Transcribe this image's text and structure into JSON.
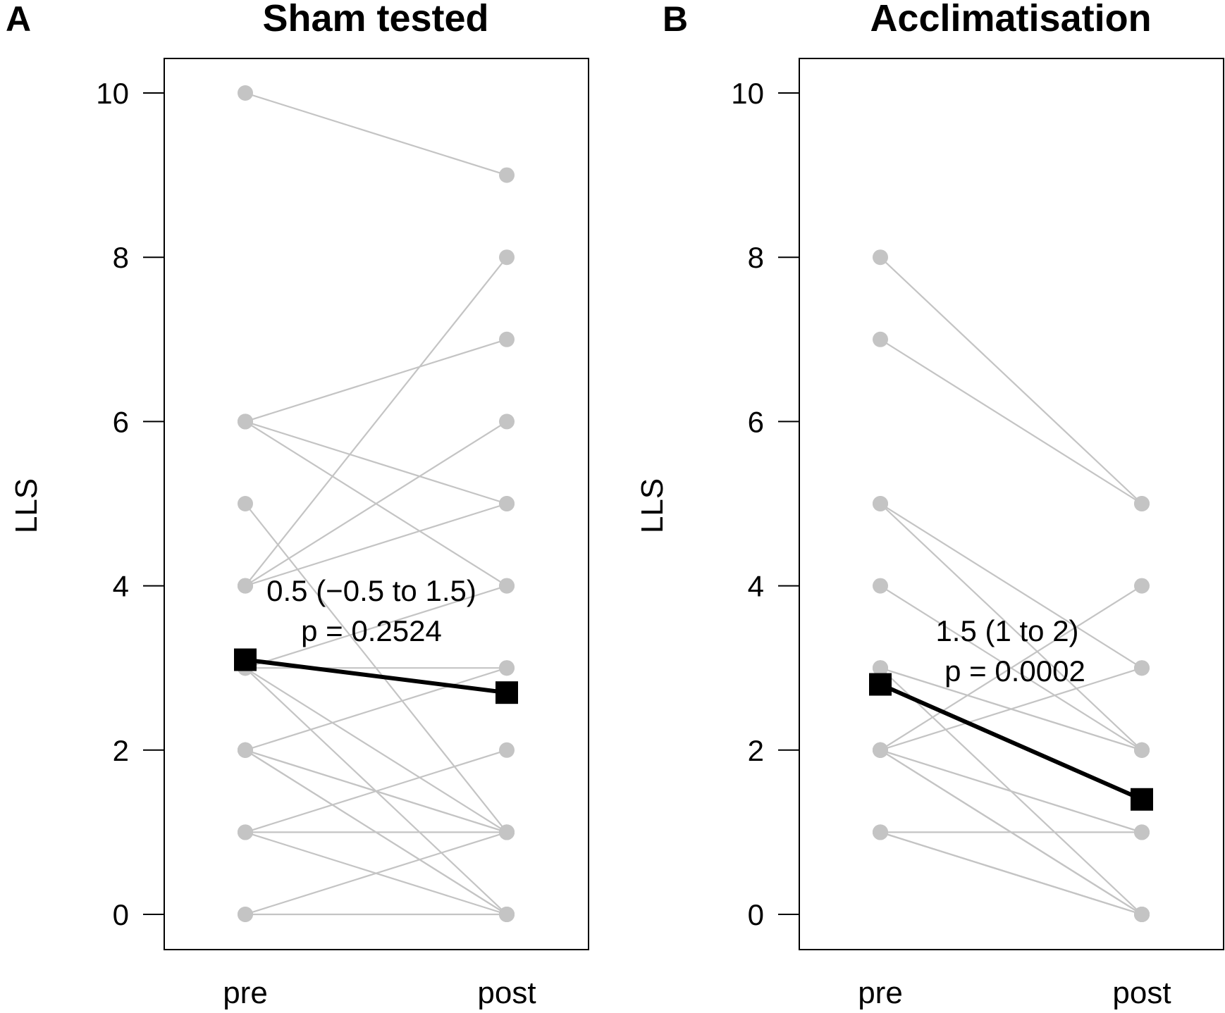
{
  "chart_data": [
    {
      "type": "line",
      "panel_label": "A",
      "title": "Sham tested",
      "xlabel": "",
      "ylabel": "LLS",
      "categories": [
        "pre",
        "post"
      ],
      "yticks": [
        0,
        2,
        4,
        6,
        8,
        10
      ],
      "ylim": [
        -0.4,
        10.4
      ],
      "individual_pairs": [
        [
          10,
          9
        ],
        [
          6,
          7
        ],
        [
          6,
          5
        ],
        [
          6,
          4
        ],
        [
          5,
          1
        ],
        [
          4,
          8
        ],
        [
          4,
          6
        ],
        [
          4,
          5
        ],
        [
          3,
          4
        ],
        [
          3,
          3
        ],
        [
          3,
          0
        ],
        [
          3,
          1
        ],
        [
          2,
          3
        ],
        [
          2,
          1
        ],
        [
          2,
          0
        ],
        [
          2,
          1
        ],
        [
          2,
          0
        ],
        [
          1,
          2
        ],
        [
          1,
          1
        ],
        [
          1,
          0
        ],
        [
          0,
          1
        ],
        [
          0,
          0
        ]
      ],
      "mean_series": {
        "name": "mean",
        "values": [
          3.1,
          2.7
        ]
      },
      "annotation": {
        "estimate": "0.5 (−0.5 to 1.5)",
        "p_value": "p = 0.2524"
      },
      "colors": {
        "individual": "#c4c4c4",
        "mean": "#000000"
      }
    },
    {
      "type": "line",
      "panel_label": "B",
      "title": "Acclimatisation",
      "xlabel": "",
      "ylabel": "LLS",
      "categories": [
        "pre",
        "post"
      ],
      "yticks": [
        0,
        2,
        4,
        6,
        8,
        10
      ],
      "ylim": [
        -0.4,
        10.4
      ],
      "individual_pairs": [
        [
          8,
          5
        ],
        [
          7,
          5
        ],
        [
          5,
          3
        ],
        [
          5,
          2
        ],
        [
          4,
          2
        ],
        [
          3,
          2
        ],
        [
          3,
          2
        ],
        [
          3,
          0
        ],
        [
          2,
          4
        ],
        [
          2,
          3
        ],
        [
          2,
          1
        ],
        [
          2,
          1
        ],
        [
          2,
          0
        ],
        [
          2,
          0
        ],
        [
          2,
          0
        ],
        [
          1,
          1
        ],
        [
          1,
          0
        ],
        [
          1,
          0
        ],
        [
          1,
          0
        ]
      ],
      "mean_series": {
        "name": "mean",
        "values": [
          2.8,
          1.4
        ]
      },
      "annotation": {
        "estimate": "1.5 (1 to 2)",
        "p_value": "p = 0.0002"
      },
      "colors": {
        "individual": "#c4c4c4",
        "mean": "#000000"
      }
    }
  ]
}
